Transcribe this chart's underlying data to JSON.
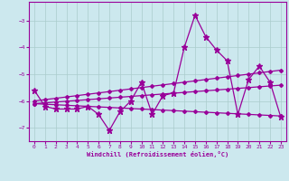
{
  "x": [
    0,
    1,
    2,
    3,
    4,
    5,
    6,
    7,
    8,
    9,
    10,
    11,
    12,
    13,
    14,
    15,
    16,
    17,
    18,
    19,
    20,
    21,
    22,
    23
  ],
  "line1": [
    -5.6,
    -6.2,
    -6.3,
    -6.3,
    -6.3,
    -6.2,
    -6.5,
    -7.1,
    -6.4,
    -6.0,
    -5.3,
    -6.5,
    -5.8,
    -5.7,
    -4.0,
    -2.8,
    -3.6,
    -4.1,
    -4.5,
    -6.5,
    -5.2,
    -4.7,
    -5.3,
    -6.6
  ],
  "line2": [
    -6.0,
    -5.95,
    -5.9,
    -5.85,
    -5.8,
    -5.75,
    -5.7,
    -5.65,
    -5.6,
    -5.55,
    -5.5,
    -5.45,
    -5.4,
    -5.35,
    -5.3,
    -5.25,
    -5.2,
    -5.15,
    -5.1,
    -5.05,
    -5.0,
    -4.95,
    -4.9,
    -4.85
  ],
  "line3": [
    -6.1,
    -6.07,
    -6.04,
    -6.01,
    -5.98,
    -5.95,
    -5.92,
    -5.89,
    -5.86,
    -5.83,
    -5.8,
    -5.77,
    -5.74,
    -5.71,
    -5.68,
    -5.65,
    -5.62,
    -5.59,
    -5.56,
    -5.53,
    -5.5,
    -5.47,
    -5.44,
    -5.41
  ],
  "line4": [
    -6.1,
    -6.12,
    -6.14,
    -6.16,
    -6.18,
    -6.2,
    -6.22,
    -6.24,
    -6.26,
    -6.28,
    -6.3,
    -6.32,
    -6.34,
    -6.36,
    -6.38,
    -6.4,
    -6.42,
    -6.44,
    -6.46,
    -6.48,
    -6.5,
    -6.52,
    -6.54,
    -6.56
  ],
  "color": "#990099",
  "bg_color": "#cce8ee",
  "grid_color": "#aacccc",
  "xlim": [
    -0.5,
    23.5
  ],
  "ylim": [
    -7.5,
    -2.3
  ],
  "yticks": [
    -7,
    -6,
    -5,
    -4,
    -3
  ],
  "xticks": [
    0,
    1,
    2,
    3,
    4,
    5,
    6,
    7,
    8,
    9,
    10,
    11,
    12,
    13,
    14,
    15,
    16,
    17,
    18,
    19,
    20,
    21,
    22,
    23
  ],
  "xlabel": "Windchill (Refroidissement éolien,°C)"
}
